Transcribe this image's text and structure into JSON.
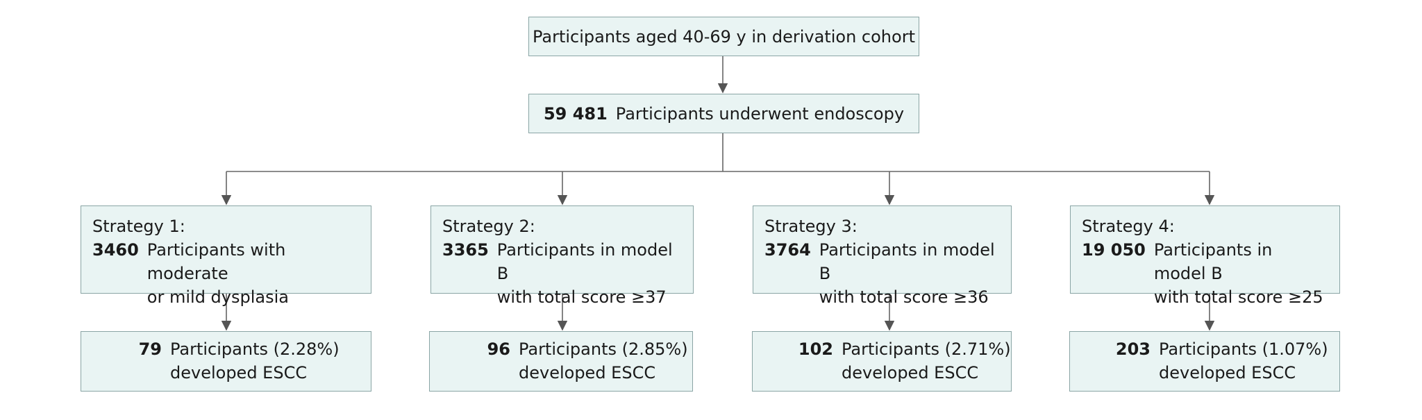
{
  "top": {
    "text": "Participants aged 40-69 y in derivation cohort"
  },
  "endoscopy": {
    "count": "59 481",
    "text": "Participants underwent endoscopy"
  },
  "strategies": [
    {
      "label": "Strategy 1:",
      "count": "3460",
      "lines": [
        "Participants with moderate",
        "or mild dysplasia"
      ],
      "outcome": {
        "count": "79",
        "lines": [
          "Participants (2.28%)",
          "developed ESCC"
        ]
      }
    },
    {
      "label": "Strategy 2:",
      "count": "3365",
      "lines": [
        "Participants in model B",
        "with total score ≥37"
      ],
      "outcome": {
        "count": "96",
        "lines": [
          "Participants (2.85%)",
          "developed ESCC"
        ]
      }
    },
    {
      "label": "Strategy 3:",
      "count": "3764",
      "lines": [
        "Participants in model B",
        "with total score ≥36"
      ],
      "outcome": {
        "count": "102",
        "lines": [
          "Participants (2.71%)",
          "developed ESCC"
        ]
      }
    },
    {
      "label": "Strategy 4:",
      "count": "19 050",
      "lines": [
        "Participants in model B",
        "with total score ≥25"
      ],
      "outcome": {
        "count": "203",
        "lines": [
          "Participants (1.07%)",
          "developed ESCC"
        ]
      }
    }
  ]
}
